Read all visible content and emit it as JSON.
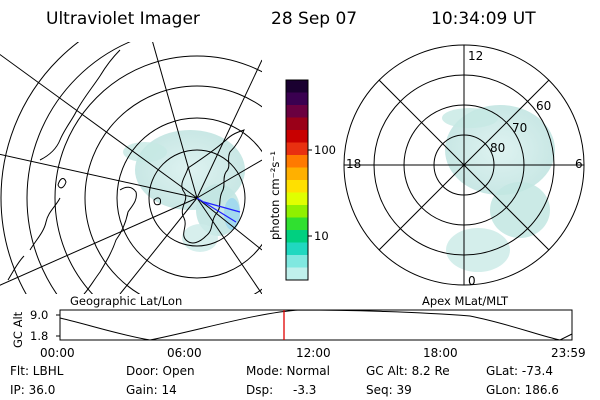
{
  "header": {
    "instrument": "Ultraviolet Imager",
    "date": "28 Sep 07",
    "time": "10:34:09 UT"
  },
  "colorbar": {
    "unit_label": "photon cm⁻²s⁻¹",
    "ticks": [
      "100",
      "10"
    ],
    "colors": [
      "#1a0030",
      "#3a0050",
      "#6a0040",
      "#9a0018",
      "#c80000",
      "#e83010",
      "#ff7a00",
      "#ffb000",
      "#ffe000",
      "#e0ff00",
      "#90f000",
      "#30e030",
      "#00d080",
      "#20d8c0",
      "#80e8e0",
      "#c0f0ec"
    ]
  },
  "geo_map": {
    "caption": "Geographic Lat/Lon",
    "aurora_color": "#bfe3e0",
    "boundary_color": "#2020ff"
  },
  "polar_plot": {
    "caption": "Apex MLat/MLT",
    "mlt_labels": [
      "12",
      "18",
      "6",
      "0"
    ],
    "lat_labels": [
      "60",
      "70",
      "80"
    ]
  },
  "altitude_plot": {
    "ylabel": "GC Alt",
    "yticks": [
      "9.0",
      "1.8"
    ],
    "xticks": [
      "00:00",
      "06:00",
      "12:00",
      "18:00",
      "23:59"
    ],
    "marker_color": "#e00000"
  },
  "info": {
    "filter": "Flt: LBHL",
    "ip": "IP: 36.0",
    "door": "Door: Open",
    "gain": "Gain: 14",
    "mode": "Mode: Normal",
    "dsp": "Dsp:",
    "dsp_value": "-3.3",
    "gc_alt": "GC Alt: 8.2 Re",
    "seq": "Seq: 39",
    "glat": "GLat: -73.4",
    "glon": "GLon: 186.6"
  }
}
